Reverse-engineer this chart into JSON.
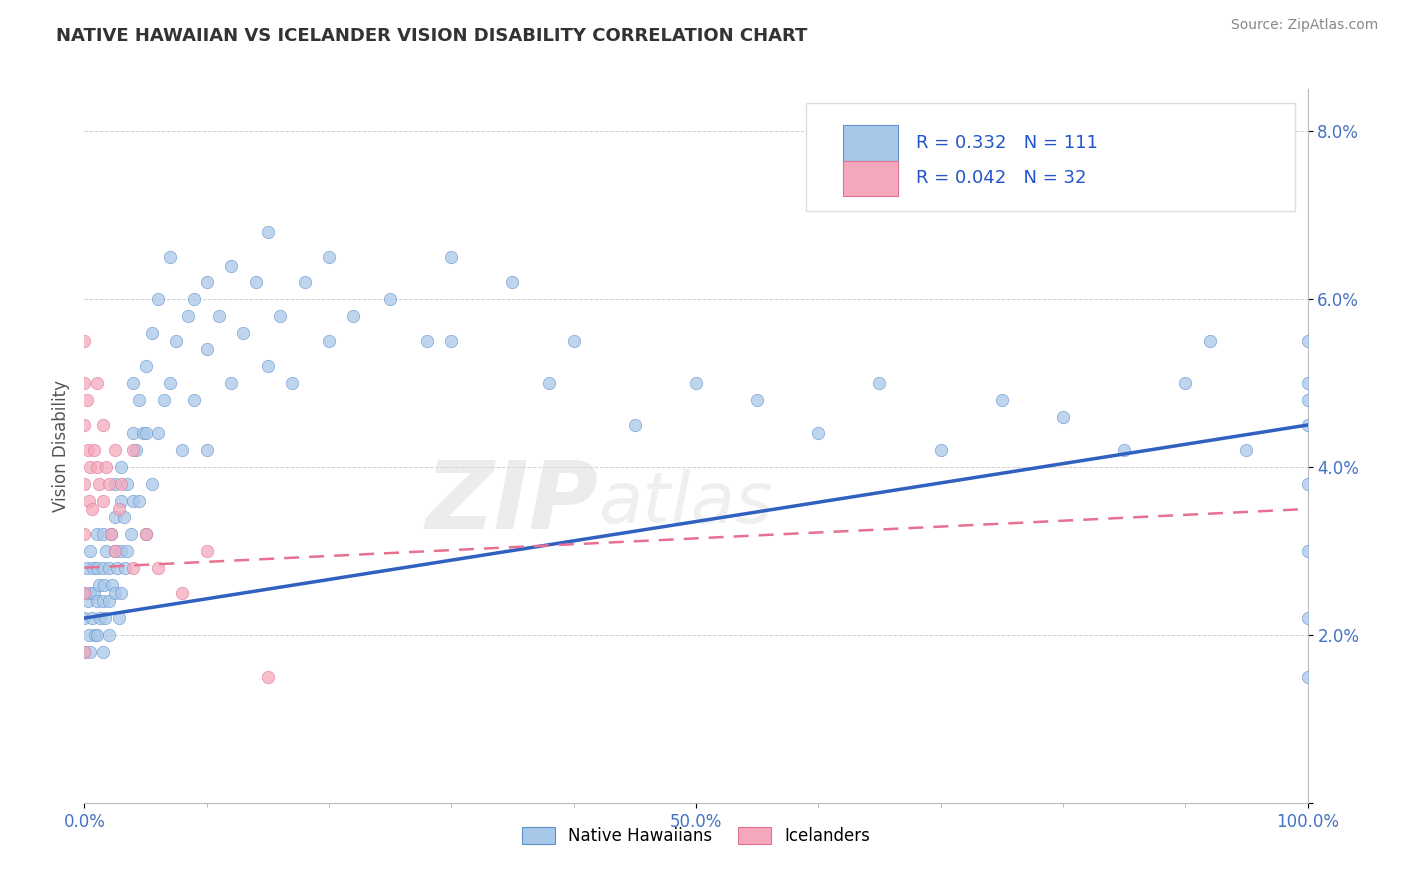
{
  "title": "NATIVE HAWAIIAN VS ICELANDER VISION DISABILITY CORRELATION CHART",
  "source": "Source: ZipAtlas.com",
  "ylabel": "Vision Disability",
  "xlim": [
    0,
    1.0
  ],
  "ylim": [
    0.0,
    0.085
  ],
  "xtick_positions": [
    0.0,
    0.5,
    1.0
  ],
  "xticklabels": [
    "0.0%",
    "50.0%",
    "100.0%"
  ],
  "ytick_positions": [
    0.0,
    0.02,
    0.04,
    0.06,
    0.08
  ],
  "yticklabels": [
    "",
    "2.0%",
    "4.0%",
    "6.0%",
    "8.0%"
  ],
  "blue_R": 0.332,
  "blue_N": 111,
  "pink_R": 0.042,
  "pink_N": 32,
  "blue_color": "#A8C8E8",
  "pink_color": "#F5A8BC",
  "blue_edge_color": "#6090D0",
  "pink_edge_color": "#E07095",
  "blue_line_color": "#3060C0",
  "pink_line_color": "#E87090",
  "legend_label_blue": "Native Hawaiians",
  "legend_label_pink": "Icelanders",
  "blue_line_intercept": 0.022,
  "blue_line_slope": 0.023,
  "pink_line_intercept": 0.028,
  "pink_line_slope": 0.007,
  "blue_x": [
    0.0,
    0.0,
    0.0,
    0.002,
    0.003,
    0.004,
    0.005,
    0.005,
    0.005,
    0.006,
    0.007,
    0.008,
    0.009,
    0.01,
    0.01,
    0.01,
    0.01,
    0.012,
    0.013,
    0.015,
    0.015,
    0.015,
    0.015,
    0.016,
    0.017,
    0.018,
    0.02,
    0.02,
    0.02,
    0.022,
    0.023,
    0.025,
    0.025,
    0.025,
    0.025,
    0.027,
    0.028,
    0.03,
    0.03,
    0.03,
    0.03,
    0.032,
    0.033,
    0.035,
    0.035,
    0.038,
    0.04,
    0.04,
    0.04,
    0.042,
    0.045,
    0.045,
    0.048,
    0.05,
    0.05,
    0.05,
    0.055,
    0.055,
    0.06,
    0.06,
    0.065,
    0.07,
    0.07,
    0.075,
    0.08,
    0.085,
    0.09,
    0.09,
    0.1,
    0.1,
    0.1,
    0.11,
    0.12,
    0.12,
    0.13,
    0.14,
    0.15,
    0.15,
    0.16,
    0.17,
    0.18,
    0.2,
    0.2,
    0.22,
    0.25,
    0.28,
    0.3,
    0.3,
    0.35,
    0.38,
    0.4,
    0.45,
    0.5,
    0.55,
    0.6,
    0.65,
    0.7,
    0.75,
    0.8,
    0.85,
    0.9,
    0.92,
    0.95,
    1.0,
    1.0,
    1.0,
    1.0,
    1.0,
    1.0,
    1.0,
    1.0
  ],
  "blue_y": [
    0.025,
    0.022,
    0.018,
    0.028,
    0.024,
    0.02,
    0.03,
    0.025,
    0.018,
    0.022,
    0.028,
    0.025,
    0.02,
    0.032,
    0.028,
    0.024,
    0.02,
    0.026,
    0.022,
    0.032,
    0.028,
    0.024,
    0.018,
    0.026,
    0.022,
    0.03,
    0.028,
    0.024,
    0.02,
    0.032,
    0.026,
    0.038,
    0.034,
    0.03,
    0.025,
    0.028,
    0.022,
    0.04,
    0.036,
    0.03,
    0.025,
    0.034,
    0.028,
    0.038,
    0.03,
    0.032,
    0.05,
    0.044,
    0.036,
    0.042,
    0.048,
    0.036,
    0.044,
    0.052,
    0.044,
    0.032,
    0.056,
    0.038,
    0.06,
    0.044,
    0.048,
    0.065,
    0.05,
    0.055,
    0.042,
    0.058,
    0.06,
    0.048,
    0.062,
    0.054,
    0.042,
    0.058,
    0.064,
    0.05,
    0.056,
    0.062,
    0.068,
    0.052,
    0.058,
    0.05,
    0.062,
    0.065,
    0.055,
    0.058,
    0.06,
    0.055,
    0.065,
    0.055,
    0.062,
    0.05,
    0.055,
    0.045,
    0.05,
    0.048,
    0.044,
    0.05,
    0.042,
    0.048,
    0.046,
    0.042,
    0.05,
    0.055,
    0.042,
    0.048,
    0.038,
    0.03,
    0.022,
    0.015,
    0.055,
    0.05,
    0.045
  ],
  "pink_x": [
    0.0,
    0.0,
    0.0,
    0.0,
    0.0,
    0.0,
    0.0,
    0.002,
    0.003,
    0.004,
    0.005,
    0.006,
    0.008,
    0.01,
    0.01,
    0.012,
    0.015,
    0.015,
    0.018,
    0.02,
    0.022,
    0.025,
    0.025,
    0.028,
    0.03,
    0.04,
    0.04,
    0.05,
    0.06,
    0.08,
    0.1,
    0.15
  ],
  "pink_y": [
    0.055,
    0.05,
    0.045,
    0.038,
    0.032,
    0.025,
    0.018,
    0.048,
    0.042,
    0.036,
    0.04,
    0.035,
    0.042,
    0.05,
    0.04,
    0.038,
    0.045,
    0.036,
    0.04,
    0.038,
    0.032,
    0.042,
    0.03,
    0.035,
    0.038,
    0.042,
    0.028,
    0.032,
    0.028,
    0.025,
    0.03,
    0.015
  ]
}
